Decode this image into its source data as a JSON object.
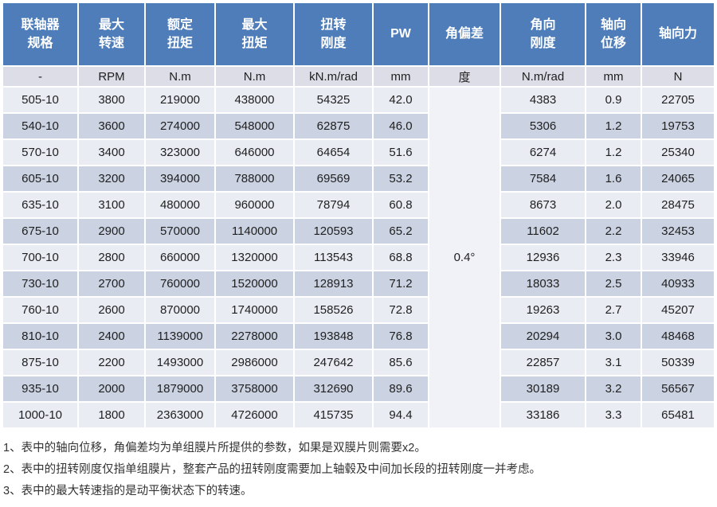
{
  "table": {
    "columns": [
      {
        "id": "spec",
        "label": "联轴器\n规格",
        "unit": "-"
      },
      {
        "id": "max-speed",
        "label": "最大\n转速",
        "unit": "RPM"
      },
      {
        "id": "rated-torque",
        "label": "额定\n扭矩",
        "unit": "N.m"
      },
      {
        "id": "max-torque",
        "label": "最大\n扭矩",
        "unit": "N.m"
      },
      {
        "id": "torsional-stiffness",
        "label": "扭转\n刚度",
        "unit": "kN.m/rad"
      },
      {
        "id": "pw",
        "label": "PW",
        "unit": "mm"
      },
      {
        "id": "angular-deviation",
        "label": "角偏差",
        "unit": "度"
      },
      {
        "id": "angular-stiffness",
        "label": "角向\n刚度",
        "unit": "N.m/rad"
      },
      {
        "id": "axial-displacement",
        "label": "轴向\n位移",
        "unit": "mm"
      },
      {
        "id": "axial-force",
        "label": "轴向力",
        "unit": "N"
      }
    ],
    "angular_deviation_value": "0.4°",
    "rows": [
      [
        "505-10",
        "3800",
        "219000",
        "438000",
        "54325",
        "42.0",
        "4383",
        "0.9",
        "22705"
      ],
      [
        "540-10",
        "3600",
        "274000",
        "548000",
        "62875",
        "46.0",
        "5306",
        "1.2",
        "19753"
      ],
      [
        "570-10",
        "3400",
        "323000",
        "646000",
        "64654",
        "51.6",
        "6274",
        "1.2",
        "25340"
      ],
      [
        "605-10",
        "3200",
        "394000",
        "788000",
        "69569",
        "53.2",
        "7584",
        "1.6",
        "24065"
      ],
      [
        "635-10",
        "3100",
        "480000",
        "960000",
        "78794",
        "60.8",
        "8673",
        "2.0",
        "28475"
      ],
      [
        "675-10",
        "2900",
        "570000",
        "1140000",
        "120593",
        "65.2",
        "11602",
        "2.2",
        "32453"
      ],
      [
        "700-10",
        "2800",
        "660000",
        "1320000",
        "113543",
        "68.8",
        "12936",
        "2.3",
        "33946"
      ],
      [
        "730-10",
        "2700",
        "760000",
        "1520000",
        "128913",
        "71.2",
        "18033",
        "2.5",
        "40933"
      ],
      [
        "760-10",
        "2600",
        "870000",
        "1740000",
        "158526",
        "72.8",
        "19263",
        "2.7",
        "45207"
      ],
      [
        "810-10",
        "2400",
        "1139000",
        "2278000",
        "193848",
        "76.8",
        "20294",
        "3.0",
        "48468"
      ],
      [
        "875-10",
        "2200",
        "1493000",
        "2986000",
        "247642",
        "85.6",
        "22857",
        "3.1",
        "50339"
      ],
      [
        "935-10",
        "2000",
        "1879000",
        "3758000",
        "312690",
        "89.6",
        "30189",
        "3.2",
        "56567"
      ],
      [
        "1000-10",
        "1800",
        "2363000",
        "4726000",
        "415735",
        "94.4",
        "33186",
        "3.3",
        "65481"
      ]
    ]
  },
  "footnotes": [
    "1、表中的轴向位移，角偏差均为单组膜片所提供的参数，如果是双膜片则需要x2。",
    "2、表中的扭转刚度仅指单组膜片，整套产品的扭转刚度需要加上轴毂及中间加长段的扭转刚度一并考虑。",
    "3、表中的最大转速指的是动平衡状态下的转速。"
  ],
  "colors": {
    "header_bg": "#4e7dba",
    "header_text": "#ffffff",
    "unit_row_bg": "#dcdde7",
    "row_light": "#eaecf4",
    "row_dark": "#cbd2e2",
    "merged_cell_bg": "#f1f2f7",
    "text": "#1f1f1f",
    "footnote_text": "#333333"
  }
}
